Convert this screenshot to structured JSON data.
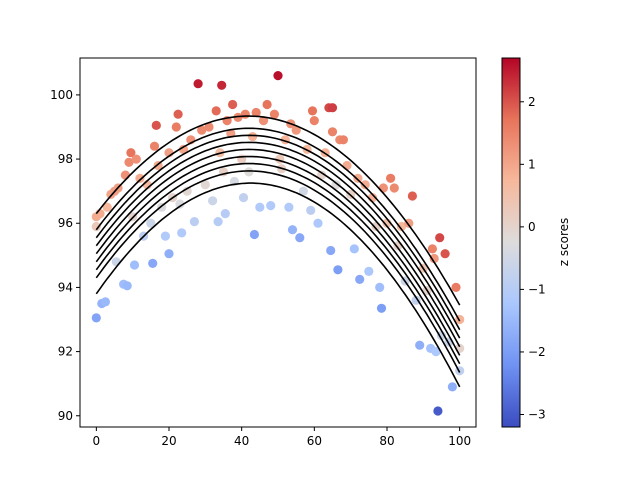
{
  "chart_data": {
    "type": "scatter",
    "title": "",
    "xlabel": "",
    "ylabel": "",
    "xlim": [
      -4.5,
      104.5
    ],
    "ylim": [
      89.65,
      101.15
    ],
    "x_ticks": [
      0,
      20,
      40,
      60,
      80,
      100
    ],
    "y_ticks": [
      90,
      92,
      94,
      96,
      98,
      100
    ],
    "grid": false,
    "legend": "none",
    "colorbar": {
      "label": "z scores",
      "colormap": "coolwarm",
      "range": [
        -3.2,
        2.7
      ],
      "ticks": [
        -3,
        -2,
        -1,
        0,
        1,
        2
      ],
      "colors": [
        "#3b4cc0",
        "#6f92f3",
        "#aac7fd",
        "#dddcdc",
        "#f7b89c",
        "#e7745b",
        "#b40426"
      ]
    },
    "curve_color": "#000000",
    "quantile_curves": [
      {
        "z": -1.8,
        "points": [
          [
            0,
            93.8
          ],
          [
            42,
            97.25
          ],
          [
            100,
            90.9
          ]
        ]
      },
      {
        "z": -1.2,
        "points": [
          [
            0,
            94.3
          ],
          [
            42,
            97.63
          ],
          [
            100,
            91.35
          ]
        ]
      },
      {
        "z": -0.9,
        "points": [
          [
            0,
            94.55
          ],
          [
            42,
            97.86
          ],
          [
            100,
            91.62
          ]
        ]
      },
      {
        "z": -0.6,
        "points": [
          [
            0,
            94.8
          ],
          [
            42,
            98.08
          ],
          [
            100,
            91.88
          ]
        ]
      },
      {
        "z": -0.3,
        "points": [
          [
            0,
            95.05
          ],
          [
            42,
            98.3
          ],
          [
            100,
            92.15
          ]
        ]
      },
      {
        "z": 0.0,
        "points": [
          [
            0,
            95.3
          ],
          [
            42,
            98.52
          ],
          [
            100,
            92.42
          ]
        ]
      },
      {
        "z": 0.3,
        "points": [
          [
            0,
            95.55
          ],
          [
            42,
            98.74
          ],
          [
            100,
            92.68
          ]
        ]
      },
      {
        "z": 0.6,
        "points": [
          [
            0,
            95.8
          ],
          [
            42,
            98.96
          ],
          [
            100,
            92.95
          ]
        ]
      },
      {
        "z": 1.2,
        "points": [
          [
            0,
            96.3
          ],
          [
            42,
            99.34
          ],
          [
            100,
            93.45
          ]
        ]
      }
    ],
    "points": [
      {
        "x": 0,
        "y": 93.05,
        "z": -1.9
      },
      {
        "x": 0,
        "y": 95.9,
        "z": 0.3
      },
      {
        "x": 0,
        "y": 96.2,
        "z": 0.9
      },
      {
        "x": 1,
        "y": 96.3,
        "z": 0.9
      },
      {
        "x": 1.5,
        "y": 93.5,
        "z": -1.6
      },
      {
        "x": 2.5,
        "y": 93.55,
        "z": -1.5
      },
      {
        "x": 3,
        "y": 96.5,
        "z": 0.7
      },
      {
        "x": 4,
        "y": 96.9,
        "z": 1.0
      },
      {
        "x": 5,
        "y": 97.0,
        "z": 1.1
      },
      {
        "x": 5.5,
        "y": 94.8,
        "z": -0.6
      },
      {
        "x": 6,
        "y": 97.1,
        "z": 1.1
      },
      {
        "x": 7.5,
        "y": 94.1,
        "z": -1.4
      },
      {
        "x": 8,
        "y": 97.5,
        "z": 1.3
      },
      {
        "x": 8.5,
        "y": 94.05,
        "z": -1.5
      },
      {
        "x": 9,
        "y": 97.9,
        "z": 1.4
      },
      {
        "x": 9.5,
        "y": 98.2,
        "z": 1.7
      },
      {
        "x": 10,
        "y": 96.2,
        "z": 0.0
      },
      {
        "x": 10.5,
        "y": 94.7,
        "z": -1.4
      },
      {
        "x": 11,
        "y": 98.0,
        "z": 1.3
      },
      {
        "x": 12,
        "y": 97.4,
        "z": 0.9
      },
      {
        "x": 13,
        "y": 95.6,
        "z": -0.9
      },
      {
        "x": 14,
        "y": 97.2,
        "z": 0.7
      },
      {
        "x": 15,
        "y": 96.0,
        "z": -0.6
      },
      {
        "x": 15.5,
        "y": 94.75,
        "z": -1.8
      },
      {
        "x": 16,
        "y": 98.4,
        "z": 1.5
      },
      {
        "x": 16.5,
        "y": 99.05,
        "z": 2.0
      },
      {
        "x": 17,
        "y": 97.8,
        "z": 0.9
      },
      {
        "x": 18,
        "y": 96.5,
        "z": -0.3
      },
      {
        "x": 19,
        "y": 95.6,
        "z": -1.1
      },
      {
        "x": 20,
        "y": 95.05,
        "z": -1.7
      },
      {
        "x": 20,
        "y": 98.2,
        "z": 1.1
      },
      {
        "x": 21,
        "y": 96.8,
        "z": 0.0
      },
      {
        "x": 22,
        "y": 99.0,
        "z": 1.6
      },
      {
        "x": 22.5,
        "y": 99.4,
        "z": 1.9
      },
      {
        "x": 23,
        "y": 96.6,
        "z": -0.3
      },
      {
        "x": 23.5,
        "y": 95.7,
        "z": -1.1
      },
      {
        "x": 24,
        "y": 98.3,
        "z": 1.0
      },
      {
        "x": 25,
        "y": 97.0,
        "z": -0.1
      },
      {
        "x": 26,
        "y": 98.6,
        "z": 1.3
      },
      {
        "x": 27,
        "y": 96.05,
        "z": -0.9
      },
      {
        "x": 28,
        "y": 100.35,
        "z": 2.5
      },
      {
        "x": 29,
        "y": 98.9,
        "z": 1.4
      },
      {
        "x": 30,
        "y": 97.2,
        "z": -0.1
      },
      {
        "x": 31,
        "y": 99.0,
        "z": 1.4
      },
      {
        "x": 32,
        "y": 96.7,
        "z": -0.6
      },
      {
        "x": 33,
        "y": 99.5,
        "z": 1.8
      },
      {
        "x": 33.5,
        "y": 96.05,
        "z": -1.0
      },
      {
        "x": 34,
        "y": 98.2,
        "z": 0.6
      },
      {
        "x": 34.5,
        "y": 100.3,
        "z": 2.4
      },
      {
        "x": 35,
        "y": 97.6,
        "z": 0.1
      },
      {
        "x": 35.5,
        "y": 96.3,
        "z": -1.0
      },
      {
        "x": 36,
        "y": 99.2,
        "z": 1.5
      },
      {
        "x": 37,
        "y": 98.8,
        "z": 1.1
      },
      {
        "x": 37.5,
        "y": 99.7,
        "z": 1.9
      },
      {
        "x": 38,
        "y": 97.3,
        "z": -0.4
      },
      {
        "x": 39,
        "y": 99.3,
        "z": 1.4
      },
      {
        "x": 40,
        "y": 98.0,
        "z": 0.2
      },
      {
        "x": 40.5,
        "y": 96.8,
        "z": -0.8
      },
      {
        "x": 41,
        "y": 99.4,
        "z": 1.5
      },
      {
        "x": 42,
        "y": 97.6,
        "z": -0.2
      },
      {
        "x": 43,
        "y": 98.7,
        "z": 0.8
      },
      {
        "x": 43.5,
        "y": 95.65,
        "z": -1.9
      },
      {
        "x": 44,
        "y": 99.45,
        "z": 1.5
      },
      {
        "x": 45,
        "y": 96.5,
        "z": -1.1
      },
      {
        "x": 46,
        "y": 99.2,
        "z": 1.3
      },
      {
        "x": 47,
        "y": 99.7,
        "z": 1.7
      },
      {
        "x": 48,
        "y": 96.55,
        "z": -1.1
      },
      {
        "x": 49,
        "y": 99.4,
        "z": 1.5
      },
      {
        "x": 50,
        "y": 100.6,
        "z": 2.6
      },
      {
        "x": 50.5,
        "y": 98.0,
        "z": 0.3
      },
      {
        "x": 51,
        "y": 97.7,
        "z": 0.1
      },
      {
        "x": 52,
        "y": 98.6,
        "z": 0.8
      },
      {
        "x": 53,
        "y": 96.5,
        "z": -1.1
      },
      {
        "x": 53.5,
        "y": 99.1,
        "z": 1.3
      },
      {
        "x": 54,
        "y": 95.8,
        "z": -1.6
      },
      {
        "x": 55,
        "y": 98.9,
        "z": 1.2
      },
      {
        "x": 56,
        "y": 95.55,
        "z": -1.8
      },
      {
        "x": 57,
        "y": 97.0,
        "z": -0.5
      },
      {
        "x": 58,
        "y": 98.3,
        "z": 0.7
      },
      {
        "x": 59,
        "y": 96.4,
        "z": -0.9
      },
      {
        "x": 59.5,
        "y": 99.5,
        "z": 1.7
      },
      {
        "x": 60,
        "y": 99.2,
        "z": 1.5
      },
      {
        "x": 61,
        "y": 96.0,
        "z": -1.2
      },
      {
        "x": 62,
        "y": 97.5,
        "z": 0.0
      },
      {
        "x": 63,
        "y": 98.2,
        "z": 0.8
      },
      {
        "x": 64,
        "y": 99.6,
        "z": 2.1
      },
      {
        "x": 64.5,
        "y": 95.15,
        "z": -1.8
      },
      {
        "x": 65,
        "y": 99.6,
        "z": 2.2
      },
      {
        "x": 65,
        "y": 98.85,
        "z": 1.5
      },
      {
        "x": 66,
        "y": 97.2,
        "z": -0.2
      },
      {
        "x": 66.5,
        "y": 94.55,
        "z": -2.0
      },
      {
        "x": 67,
        "y": 98.6,
        "z": 1.4
      },
      {
        "x": 68,
        "y": 98.6,
        "z": 1.5
      },
      {
        "x": 69,
        "y": 97.8,
        "z": 0.9
      },
      {
        "x": 70,
        "y": 96.9,
        "z": 0.1
      },
      {
        "x": 71,
        "y": 95.2,
        "z": -1.3
      },
      {
        "x": 72,
        "y": 97.4,
        "z": 0.9
      },
      {
        "x": 72.5,
        "y": 94.25,
        "z": -1.8
      },
      {
        "x": 74,
        "y": 97.2,
        "z": 0.9
      },
      {
        "x": 75,
        "y": 94.5,
        "z": -1.2
      },
      {
        "x": 76,
        "y": 96.8,
        "z": 0.8
      },
      {
        "x": 77,
        "y": 95.9,
        "z": 0.1
      },
      {
        "x": 78,
        "y": 94.0,
        "z": -1.4
      },
      {
        "x": 78.5,
        "y": 93.35,
        "z": -2.0
      },
      {
        "x": 79,
        "y": 97.1,
        "z": 1.3
      },
      {
        "x": 80,
        "y": 96.0,
        "z": 0.5
      },
      {
        "x": 81,
        "y": 97.4,
        "z": 1.6
      },
      {
        "x": 82,
        "y": 97.1,
        "z": 1.4
      },
      {
        "x": 83,
        "y": 95.3,
        "z": 0.1
      },
      {
        "x": 84,
        "y": 95.9,
        "z": 0.7
      },
      {
        "x": 85,
        "y": 94.2,
        "z": -0.6
      },
      {
        "x": 86,
        "y": 96.0,
        "z": 1.1
      },
      {
        "x": 87,
        "y": 96.85,
        "z": 1.9
      },
      {
        "x": 88,
        "y": 93.6,
        "z": -0.8
      },
      {
        "x": 89,
        "y": 92.2,
        "z": -1.7
      },
      {
        "x": 90,
        "y": 94.6,
        "z": 0.4
      },
      {
        "x": 91,
        "y": 93.9,
        "z": 0.0
      },
      {
        "x": 92,
        "y": 92.1,
        "z": -1.3
      },
      {
        "x": 92.5,
        "y": 95.2,
        "z": 1.5
      },
      {
        "x": 93,
        "y": 94.9,
        "z": 1.2
      },
      {
        "x": 93.5,
        "y": 92.0,
        "z": -1.2
      },
      {
        "x": 94,
        "y": 90.15,
        "z": -3.0
      },
      {
        "x": 94.5,
        "y": 95.55,
        "z": 2.1
      },
      {
        "x": 95,
        "y": 92.5,
        "z": -0.6
      },
      {
        "x": 96,
        "y": 95.05,
        "z": 2.0
      },
      {
        "x": 97,
        "y": 92.3,
        "z": -0.7
      },
      {
        "x": 98,
        "y": 90.9,
        "z": -1.7
      },
      {
        "x": 99,
        "y": 94.0,
        "z": 1.6
      },
      {
        "x": 100,
        "y": 93.0,
        "z": 0.8
      },
      {
        "x": 100,
        "y": 91.4,
        "z": -0.8
      },
      {
        "x": 100,
        "y": 92.1,
        "z": 0.0
      }
    ]
  }
}
